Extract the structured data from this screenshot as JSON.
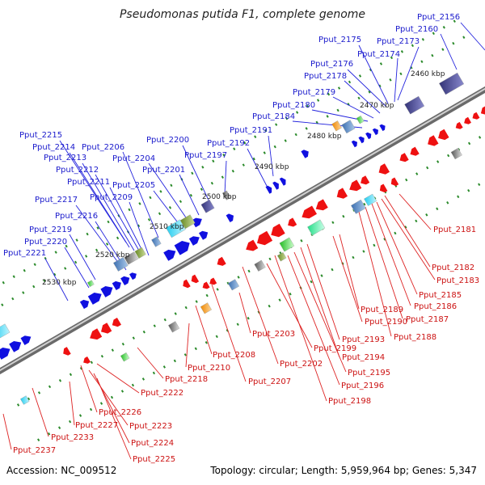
{
  "title": "Pseudomonas putida F1, complete genome",
  "accession": "Accession: NC_009512",
  "summary": "Topology: circular; Length: 5,959,964 bp; Genes: 5,347",
  "colors": {
    "forward_label": "#1a1acc",
    "reverse_label": "#cc1111",
    "forward_gene": "#1010e0",
    "reverse_gene": "#ee1111",
    "backbone": "#777777",
    "tick": "#2a8a2a"
  },
  "scale_labels": [
    "2460 kbp",
    "2470 kbp",
    "2480 kbp",
    "2490 kbp",
    "2500 kbp",
    "2510 kbp",
    "2520 kbp",
    "2530 kbp"
  ],
  "forward_genes": [
    "Pput_2156",
    "Pput_2160",
    "Pput_2173",
    "Pput_2174",
    "Pput_2175",
    "Pput_2176",
    "Pput_2178",
    "Pput_2179",
    "Pput_2180",
    "Pput_2184",
    "Pput_2191",
    "Pput_2192",
    "Pput_2197",
    "Pput_2200",
    "Pput_2201",
    "Pput_2204",
    "Pput_2205",
    "Pput_2206",
    "Pput_2215",
    "Pput_2214",
    "Pput_2213",
    "Pput_2212",
    "Pput_2211",
    "Pput_2209",
    "Pput_2217",
    "Pput_2216",
    "Pput_2219",
    "Pput_2220",
    "Pput_2221"
  ],
  "reverse_genes": [
    "Pput_2181",
    "Pput_2182",
    "Pput_2183",
    "Pput_2185",
    "Pput_2186",
    "Pput_2187",
    "Pput_2188",
    "Pput_2189",
    "Pput_2190",
    "Pput_2193",
    "Pput_2194",
    "Pput_2195",
    "Pput_2196",
    "Pput_2198",
    "Pput_2199",
    "Pput_2202",
    "Pput_2203",
    "Pput_2207",
    "Pput_2208",
    "Pput_2210",
    "Pput_2218",
    "Pput_2222",
    "Pput_2226",
    "Pput_2223",
    "Pput_2227",
    "Pput_2224",
    "Pput_2225",
    "Pput_2233",
    "Pput_2237"
  ]
}
